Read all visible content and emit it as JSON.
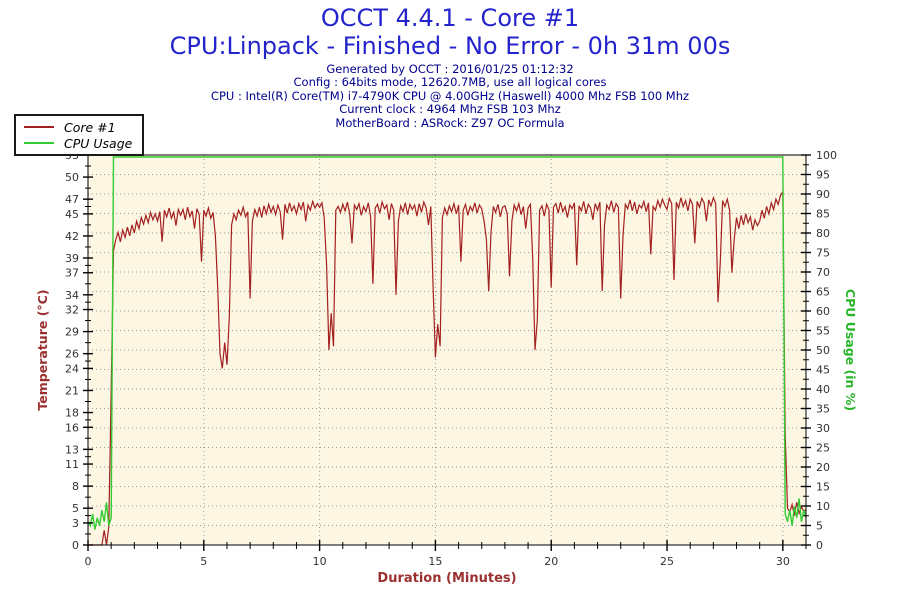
{
  "header": {
    "title": "OCCT 4.4.1 - Core #1",
    "subtitle": "CPU:Linpack - Finished - No Error - 0h 31m 00s",
    "info_lines": [
      "Generated by OCCT : 2016/01/25 01:12:32",
      "Config : 64bits mode, 12620.7MB, use all logical cores",
      "CPU : Intel(R) Core(TM) i7-4790K CPU @ 4.00GHz (Haswell) 4000 Mhz FSB 100 Mhz",
      "Current clock : 4964 Mhz FSB 103 Mhz",
      "MotherBoard : ASRock: Z97 OC Formula"
    ]
  },
  "colors": {
    "title": "#2424cc",
    "info": "#00008b",
    "plot_bg": "#fdf6e3",
    "grid": "#999999",
    "axis": "#000000",
    "tick_text": "#333333",
    "temp_line": "#a32020",
    "usage_line": "#33cc33",
    "temp_axis_label": "#9c3030",
    "usage_axis_label": "#2bb52b",
    "x_axis_label": "#9c3030"
  },
  "chart_data": {
    "type": "line",
    "xlabel": "Duration (Minutes)",
    "ylabel_left": "Temperature (°C)",
    "ylabel_right": "CPU Usage (in %)",
    "x_range": [
      0,
      31
    ],
    "x_major_ticks": [
      0,
      5,
      10,
      15,
      20,
      25,
      30
    ],
    "x_minor_step": 1,
    "y_left_range": [
      0,
      53
    ],
    "y_left_ticks": [
      53,
      50,
      47,
      45,
      42,
      39,
      37,
      34,
      32,
      29,
      26,
      24,
      21,
      18,
      16,
      13,
      11,
      8,
      5,
      3,
      0
    ],
    "y_right_range": [
      0,
      100
    ],
    "y_right_tick_step": 5,
    "grid": true,
    "legend_position": "top-left",
    "series": [
      {
        "name": "Core #1",
        "axis": "left",
        "color": "#a32020",
        "x_start": 0,
        "x_step": 0.1,
        "values": [
          0,
          0,
          0,
          0,
          0,
          0,
          0,
          2,
          0,
          2.5,
          21,
          40,
          41.5,
          42.5,
          41.2,
          42.8,
          41.8,
          43.2,
          42,
          43.5,
          42.4,
          44,
          43,
          44.5,
          43.6,
          44.8,
          43.8,
          45.2,
          44.2,
          45,
          44,
          45.3,
          41.2,
          45.5,
          44.6,
          45.8,
          44.4,
          45.2,
          43.4,
          45.6,
          44.8,
          45.6,
          44.2,
          45.9,
          44.6,
          45.4,
          43,
          45.7,
          44.9,
          38.5,
          45.5,
          44.7,
          45.8,
          44.4,
          45.2,
          42,
          35,
          26,
          24,
          27.5,
          24.5,
          31,
          43.5,
          45,
          44.2,
          45.5,
          44.8,
          45.9,
          44.6,
          45.3,
          33.5,
          44,
          45.6,
          44.7,
          45.9,
          44.5,
          46.1,
          45,
          46.3,
          45.2,
          46,
          44.9,
          46.2,
          45.3,
          41.5,
          46.3,
          45.1,
          46.5,
          45.4,
          46.1,
          45,
          46.4,
          45.6,
          46.6,
          44,
          46.2,
          45.5,
          46.7,
          45.8,
          46.4,
          45.9,
          46.5,
          44.5,
          38,
          26.5,
          31.5,
          27,
          45.5,
          46,
          45.2,
          46.3,
          45.4,
          46.6,
          45,
          41,
          46.2,
          45.6,
          46.4,
          44.8,
          46,
          45.3,
          46.5,
          44.6,
          35.5,
          45.8,
          46.3,
          45.1,
          46.6,
          45.7,
          46.2,
          44.2,
          46.4,
          45.5,
          34,
          44,
          46.1,
          45.3,
          46.5,
          44.9,
          46.3,
          45.6,
          46.2,
          44.7,
          46.4,
          45.2,
          46.6,
          45.8,
          43.5,
          46,
          35,
          25.5,
          30,
          27,
          44.5,
          45.8,
          44.9,
          46.1,
          45.3,
          46.4,
          45,
          46.2,
          38.5,
          45.5,
          46.3,
          44.8,
          46,
          45.4,
          46.5,
          45.1,
          46.2,
          45.7,
          44,
          41.5,
          34.5,
          42.5,
          46,
          45.2,
          46.3,
          44.6,
          45.9,
          46.1,
          45,
          36.5,
          44,
          46.2,
          45.4,
          46.4,
          44.9,
          46,
          43,
          45.8,
          46.3,
          39,
          26.5,
          30.5,
          45.5,
          46.1,
          44.7,
          46.3,
          45.6,
          35,
          45.9,
          46.4,
          45.1,
          46.6,
          45.3,
          46,
          44.5,
          46.2,
          45.7,
          46.5,
          38,
          46.1,
          45.4,
          46.7,
          45,
          46.3,
          45.8,
          44.2,
          46.4,
          45.5,
          46.6,
          34.5,
          43.5,
          46.2,
          45.6,
          46.8,
          45.2,
          46.4,
          45.9,
          33.5,
          42,
          46.3,
          45.7,
          46.9,
          45.4,
          46.6,
          45,
          46.2,
          45.8,
          46.7,
          45.3,
          46.5,
          39.5,
          46,
          45.5,
          46.8,
          45.9,
          47,
          46.2,
          45.6,
          47.1,
          46.4,
          36,
          46.6,
          45.8,
          47.2,
          46,
          46.8,
          45.4,
          47,
          46.3,
          41,
          46.7,
          45.9,
          47.1,
          46.5,
          44,
          46.9,
          46.1,
          47.2,
          46.4,
          33,
          38.5,
          46.8,
          46,
          47,
          45.5,
          37,
          41.5,
          44.5,
          43,
          44.8,
          43.5,
          45,
          43.8,
          44.6,
          42.8,
          44.2,
          43.4,
          44,
          45.5,
          44.4,
          46,
          45,
          46.5,
          45.6,
          47,
          46.3,
          47.5,
          48,
          15,
          5,
          4.5,
          5.5,
          4,
          5.8,
          4.3,
          5.2,
          4.6,
          4.8
        ]
      },
      {
        "name": "CPU Usage",
        "axis": "right",
        "color": "#33cc33",
        "x_start": 0,
        "x_step": 0.1,
        "values": [
          6,
          5,
          8,
          4,
          7,
          5,
          9,
          6,
          11,
          5,
          7,
          100,
          100,
          100,
          100,
          100,
          100,
          100,
          100,
          100,
          100,
          100,
          100,
          100,
          100,
          100,
          100,
          100,
          100,
          100,
          100,
          100,
          100,
          100,
          100,
          100,
          100,
          100,
          100,
          100,
          100,
          100,
          100,
          100,
          100,
          100,
          100,
          100,
          100,
          100,
          100,
          100,
          100,
          100,
          100,
          100,
          100,
          100,
          100,
          100,
          100,
          100,
          100,
          100,
          100,
          100,
          100,
          100,
          100,
          100,
          100,
          100,
          100,
          100,
          100,
          100,
          100,
          100,
          100,
          100,
          100,
          100,
          100,
          100,
          100,
          100,
          100,
          100,
          100,
          100,
          100,
          100,
          100,
          100,
          100,
          100,
          100,
          100,
          100,
          100,
          100,
          100,
          100,
          100,
          100,
          100,
          100,
          100,
          100,
          100,
          100,
          100,
          100,
          100,
          100,
          100,
          100,
          100,
          100,
          100,
          100,
          100,
          100,
          100,
          100,
          100,
          100,
          100,
          100,
          100,
          100,
          100,
          100,
          100,
          100,
          100,
          100,
          100,
          100,
          100,
          100,
          100,
          100,
          100,
          100,
          100,
          100,
          100,
          100,
          100,
          100,
          100,
          100,
          100,
          100,
          100,
          100,
          100,
          100,
          100,
          100,
          100,
          100,
          100,
          100,
          100,
          100,
          100,
          100,
          100,
          100,
          100,
          100,
          100,
          100,
          100,
          100,
          100,
          100,
          100,
          100,
          100,
          100,
          100,
          100,
          100,
          100,
          100,
          100,
          100,
          100,
          100,
          100,
          100,
          100,
          100,
          100,
          100,
          100,
          100,
          100,
          100,
          100,
          100,
          100,
          100,
          100,
          100,
          100,
          100,
          100,
          100,
          100,
          100,
          100,
          100,
          100,
          100,
          100,
          100,
          100,
          100,
          100,
          100,
          100,
          100,
          100,
          100,
          100,
          100,
          100,
          100,
          100,
          100,
          100,
          100,
          100,
          100,
          100,
          100,
          100,
          100,
          100,
          100,
          100,
          100,
          100,
          100,
          100,
          100,
          100,
          100,
          100,
          100,
          100,
          100,
          100,
          100,
          100,
          100,
          100,
          100,
          100,
          100,
          100,
          100,
          100,
          100,
          100,
          100,
          100,
          100,
          100,
          100,
          100,
          100,
          100,
          100,
          100,
          100,
          100,
          100,
          100,
          100,
          100,
          100,
          100,
          100,
          100,
          100,
          100,
          100,
          100,
          100,
          100,
          100,
          100,
          100,
          100,
          100,
          100,
          8,
          6,
          9,
          5,
          10,
          7,
          12,
          6,
          9,
          7
        ]
      }
    ]
  }
}
